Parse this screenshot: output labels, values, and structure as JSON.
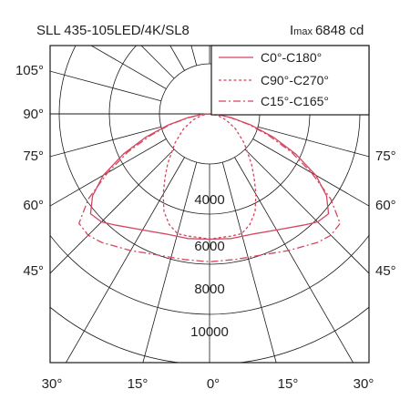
{
  "header": {
    "product": "SLL 435-105LED/4K/SL8",
    "imax_symbol": "I",
    "imax_subscript": "max",
    "imax_value": "6848 cd"
  },
  "colors": {
    "curve": "#d6455f",
    "grid": "#1a1a1a",
    "text": "#222222"
  },
  "chart_data": {
    "type": "polar",
    "angle_labels": {
      "left": [
        "105°",
        "90°",
        "75°",
        "60°",
        "45°"
      ],
      "right": [
        "75°",
        "60°",
        "45°"
      ],
      "bottom": [
        "30°",
        "15°",
        "0°",
        "15°",
        "30°"
      ]
    },
    "radial_labels": [
      "4000",
      "6000",
      "8000",
      "10000"
    ],
    "radial_max": 12000,
    "unit": "cd",
    "legend_placement": "top-right",
    "series": [
      {
        "name": "C0°-C180°",
        "style": "solid",
        "angles": [
          -90,
          -85,
          -80,
          -75,
          -70,
          -65,
          -60,
          -55,
          -50,
          -45,
          -40,
          -30,
          -20,
          -10,
          0,
          10,
          20,
          30,
          40,
          45,
          50,
          55,
          60,
          65,
          70,
          75,
          80,
          85,
          90
        ],
        "values": [
          0,
          350,
          900,
          1700,
          2700,
          3800,
          4900,
          5700,
          6200,
          6100,
          5800,
          5350,
          5100,
          5050,
          5000,
          5050,
          5100,
          5350,
          5800,
          6100,
          6200,
          5700,
          4900,
          3800,
          2700,
          1700,
          900,
          350,
          0
        ]
      },
      {
        "name": "C90°-C270°",
        "style": "dashed",
        "angles": [
          -90,
          -80,
          -70,
          -60,
          -50,
          -40,
          -35,
          -30,
          -25,
          -20,
          -15,
          -10,
          -5,
          0,
          5,
          10,
          15,
          20,
          25,
          30,
          35,
          40,
          50,
          60,
          70,
          80,
          90
        ],
        "values": [
          0,
          300,
          700,
          1200,
          1800,
          2600,
          3100,
          3700,
          4300,
          4700,
          4950,
          4950,
          4950,
          5000,
          4950,
          4950,
          4950,
          4700,
          4300,
          3700,
          3100,
          2600,
          1800,
          1200,
          700,
          300,
          0
        ]
      },
      {
        "name": "C15°-C165°",
        "style": "dashdot",
        "angles": [
          -90,
          -85,
          -80,
          -75,
          -70,
          -65,
          -60,
          -55,
          -50,
          -45,
          -40,
          -30,
          -20,
          -10,
          0,
          10,
          20,
          30,
          40,
          45,
          50,
          55,
          60,
          65,
          70,
          75,
          80,
          85,
          90
        ],
        "values": [
          0,
          350,
          850,
          1600,
          2500,
          3600,
          4700,
          5900,
          6800,
          6848,
          6700,
          6300,
          6000,
          5900,
          5900,
          5900,
          6000,
          6300,
          6700,
          6848,
          6800,
          5900,
          4700,
          3600,
          2500,
          1600,
          850,
          350,
          0
        ]
      }
    ]
  }
}
